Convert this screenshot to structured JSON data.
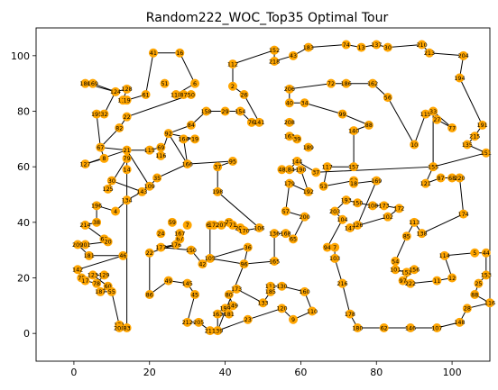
{
  "chart_data": {
    "type": "scatter",
    "title": "Random222_WOC_Top35 Optimal Tour",
    "xlim": [
      -10,
      110
    ],
    "ylim": [
      -10,
      110
    ],
    "x_ticks": [
      0,
      20,
      40,
      60,
      80,
      100
    ],
    "y_ticks": [
      0,
      20,
      40,
      60,
      80,
      100
    ],
    "grid": false,
    "marker_color": "#ffa500",
    "line_color": "#000000",
    "points": [
      {
        "id": "186",
        "x": 3,
        "y": 90
      },
      {
        "id": "169",
        "x": 5,
        "y": 90
      },
      {
        "id": "195",
        "x": 6,
        "y": 79
      },
      {
        "id": "32",
        "x": 8,
        "y": 79
      },
      {
        "id": "124",
        "x": 11,
        "y": 87
      },
      {
        "id": "128",
        "x": 14,
        "y": 88
      },
      {
        "id": "119",
        "x": 13,
        "y": 84
      },
      {
        "id": "19",
        "x": 14,
        "y": 84
      },
      {
        "id": "61",
        "x": 19,
        "y": 86
      },
      {
        "id": "41",
        "x": 21,
        "y": 101
      },
      {
        "id": "16",
        "x": 28,
        "y": 101
      },
      {
        "id": "51",
        "x": 24,
        "y": 90
      },
      {
        "id": "6",
        "x": 32,
        "y": 90
      },
      {
        "id": "118",
        "x": 27,
        "y": 86
      },
      {
        "id": "87",
        "x": 29,
        "y": 86
      },
      {
        "id": "50",
        "x": 31,
        "y": 86
      },
      {
        "id": "22",
        "x": 14,
        "y": 78
      },
      {
        "id": "82",
        "x": 12,
        "y": 74
      },
      {
        "id": "67",
        "x": 7,
        "y": 67
      },
      {
        "id": "8",
        "x": 8,
        "y": 63
      },
      {
        "id": "127",
        "x": 3,
        "y": 61
      },
      {
        "id": "21",
        "x": 14,
        "y": 66
      },
      {
        "id": "115",
        "x": 20,
        "y": 66
      },
      {
        "id": "69",
        "x": 23,
        "y": 67
      },
      {
        "id": "116",
        "x": 23,
        "y": 64
      },
      {
        "id": "92",
        "x": 25,
        "y": 72
      },
      {
        "id": "84",
        "x": 31,
        "y": 75
      },
      {
        "id": "158",
        "x": 35,
        "y": 80
      },
      {
        "id": "29",
        "x": 40,
        "y": 80
      },
      {
        "id": "154",
        "x": 44,
        "y": 80
      },
      {
        "id": "164",
        "x": 29,
        "y": 70
      },
      {
        "id": "19b",
        "x": 32,
        "y": 70
      },
      {
        "id": "112",
        "x": 42,
        "y": 97
      },
      {
        "id": "2",
        "x": 42,
        "y": 89
      },
      {
        "id": "26",
        "x": 45,
        "y": 86
      },
      {
        "id": "152",
        "x": 53,
        "y": 102
      },
      {
        "id": "218",
        "x": 53,
        "y": 98
      },
      {
        "id": "43",
        "x": 58,
        "y": 100
      },
      {
        "id": "183",
        "x": 62,
        "y": 103
      },
      {
        "id": "206",
        "x": 57,
        "y": 88
      },
      {
        "id": "40",
        "x": 57,
        "y": 83
      },
      {
        "id": "34",
        "x": 61,
        "y": 83
      },
      {
        "id": "76",
        "x": 47,
        "y": 76
      },
      {
        "id": "141",
        "x": 49,
        "y": 76
      },
      {
        "id": "74",
        "x": 72,
        "y": 104
      },
      {
        "id": "13",
        "x": 76,
        "y": 103
      },
      {
        "id": "137",
        "x": 80,
        "y": 104
      },
      {
        "id": "30",
        "x": 83,
        "y": 103
      },
      {
        "id": "210",
        "x": 92,
        "y": 104
      },
      {
        "id": "213",
        "x": 94,
        "y": 101
      },
      {
        "id": "204",
        "x": 103,
        "y": 100
      },
      {
        "id": "194",
        "x": 102,
        "y": 92
      },
      {
        "id": "72",
        "x": 68,
        "y": 90
      },
      {
        "id": "186b",
        "x": 72,
        "y": 90
      },
      {
        "id": "162",
        "x": 79,
        "y": 90
      },
      {
        "id": "56",
        "x": 83,
        "y": 85
      },
      {
        "id": "99",
        "x": 71,
        "y": 79
      },
      {
        "id": "88",
        "x": 78,
        "y": 75
      },
      {
        "id": "208",
        "x": 57,
        "y": 76
      },
      {
        "id": "163",
        "x": 57,
        "y": 71
      },
      {
        "id": "39",
        "x": 59,
        "y": 70
      },
      {
        "id": "189",
        "x": 62,
        "y": 67
      },
      {
        "id": "140",
        "x": 74,
        "y": 73
      },
      {
        "id": "10",
        "x": 90,
        "y": 68
      },
      {
        "id": "115b",
        "x": 93,
        "y": 79
      },
      {
        "id": "33",
        "x": 95,
        "y": 80
      },
      {
        "id": "27",
        "x": 96,
        "y": 77
      },
      {
        "id": "77",
        "x": 100,
        "y": 74
      },
      {
        "id": "191",
        "x": 108,
        "y": 75
      },
      {
        "id": "215",
        "x": 106,
        "y": 71
      },
      {
        "id": "135",
        "x": 104,
        "y": 68
      },
      {
        "id": "151",
        "x": 109,
        "y": 65
      },
      {
        "id": "121",
        "x": 93,
        "y": 54
      },
      {
        "id": "87b",
        "x": 97,
        "y": 56
      },
      {
        "id": "68",
        "x": 100,
        "y": 56
      },
      {
        "id": "220",
        "x": 102,
        "y": 56
      },
      {
        "id": "155",
        "x": 95,
        "y": 60
      },
      {
        "id": "174",
        "x": 103,
        "y": 43
      },
      {
        "id": "144",
        "x": 59,
        "y": 62
      },
      {
        "id": "184",
        "x": 57,
        "y": 59
      },
      {
        "id": "48",
        "x": 55,
        "y": 59
      },
      {
        "id": "190",
        "x": 60,
        "y": 59
      },
      {
        "id": "179",
        "x": 57,
        "y": 54
      },
      {
        "id": "192",
        "x": 62,
        "y": 51
      },
      {
        "id": "37",
        "x": 64,
        "y": 58
      },
      {
        "id": "117",
        "x": 67,
        "y": 60
      },
      {
        "id": "157",
        "x": 74,
        "y": 60
      },
      {
        "id": "53",
        "x": 66,
        "y": 53
      },
      {
        "id": "58",
        "x": 74,
        "y": 55
      },
      {
        "id": "18",
        "x": 74,
        "y": 54
      },
      {
        "id": "169b",
        "x": 80,
        "y": 55
      },
      {
        "id": "57",
        "x": 56,
        "y": 44
      },
      {
        "id": "200",
        "x": 61,
        "y": 42
      },
      {
        "id": "136",
        "x": 53,
        "y": 36
      },
      {
        "id": "168",
        "x": 56,
        "y": 36
      },
      {
        "id": "65",
        "x": 58,
        "y": 34
      },
      {
        "id": "193",
        "x": 72,
        "y": 48
      },
      {
        "id": "150",
        "x": 75,
        "y": 47
      },
      {
        "id": "108",
        "x": 79,
        "y": 46
      },
      {
        "id": "173",
        "x": 82,
        "y": 46
      },
      {
        "id": "172",
        "x": 86,
        "y": 45
      },
      {
        "id": "102",
        "x": 83,
        "y": 42
      },
      {
        "id": "203",
        "x": 69,
        "y": 44
      },
      {
        "id": "104",
        "x": 71,
        "y": 41
      },
      {
        "id": "126",
        "x": 75,
        "y": 39
      },
      {
        "id": "147",
        "x": 73,
        "y": 38
      },
      {
        "id": "94",
        "x": 67,
        "y": 31
      },
      {
        "id": "7",
        "x": 69,
        "y": 31
      },
      {
        "id": "103",
        "x": 69,
        "y": 27
      },
      {
        "id": "113",
        "x": 90,
        "y": 40
      },
      {
        "id": "85",
        "x": 88,
        "y": 35
      },
      {
        "id": "138",
        "x": 92,
        "y": 36
      },
      {
        "id": "54",
        "x": 85,
        "y": 26
      },
      {
        "id": "101",
        "x": 85,
        "y": 23
      },
      {
        "id": "152b",
        "x": 88,
        "y": 22
      },
      {
        "id": "156",
        "x": 90,
        "y": 23
      },
      {
        "id": "97",
        "x": 87,
        "y": 19
      },
      {
        "id": "222",
        "x": 89,
        "y": 18
      },
      {
        "id": "114",
        "x": 98,
        "y": 28
      },
      {
        "id": "11",
        "x": 96,
        "y": 19
      },
      {
        "id": "12",
        "x": 100,
        "y": 20
      },
      {
        "id": "5",
        "x": 106,
        "y": 29
      },
      {
        "id": "44",
        "x": 109,
        "y": 29
      },
      {
        "id": "153",
        "x": 109,
        "y": 21
      },
      {
        "id": "25",
        "x": 107,
        "y": 18
      },
      {
        "id": "88b",
        "x": 106,
        "y": 14
      },
      {
        "id": "116b",
        "x": 110,
        "y": 11
      },
      {
        "id": "28",
        "x": 104,
        "y": 9
      },
      {
        "id": "148",
        "x": 102,
        "y": 4
      },
      {
        "id": "107",
        "x": 96,
        "y": 2
      },
      {
        "id": "146",
        "x": 89,
        "y": 2
      },
      {
        "id": "62",
        "x": 82,
        "y": 2
      },
      {
        "id": "180",
        "x": 75,
        "y": 2
      },
      {
        "id": "178",
        "x": 73,
        "y": 7
      },
      {
        "id": "216",
        "x": 71,
        "y": 18
      },
      {
        "id": "110",
        "x": 63,
        "y": 8
      },
      {
        "id": "9",
        "x": 58,
        "y": 5
      },
      {
        "id": "120",
        "x": 55,
        "y": 9
      },
      {
        "id": "160",
        "x": 61,
        "y": 15
      },
      {
        "id": "111",
        "x": 52,
        "y": 17
      },
      {
        "id": "130",
        "x": 55,
        "y": 17
      },
      {
        "id": "185",
        "x": 52,
        "y": 15
      },
      {
        "id": "165",
        "x": 53,
        "y": 26
      },
      {
        "id": "96",
        "x": 45,
        "y": 25
      },
      {
        "id": "36",
        "x": 46,
        "y": 31
      },
      {
        "id": "133",
        "x": 50,
        "y": 11
      },
      {
        "id": "173b",
        "x": 43,
        "y": 16
      },
      {
        "id": "80",
        "x": 41,
        "y": 14
      },
      {
        "id": "149",
        "x": 42,
        "y": 10
      },
      {
        "id": "199",
        "x": 40,
        "y": 9
      },
      {
        "id": "163b",
        "x": 38,
        "y": 7
      },
      {
        "id": "181",
        "x": 41,
        "y": 7
      },
      {
        "id": "23",
        "x": 46,
        "y": 5
      },
      {
        "id": "139",
        "x": 38,
        "y": 1
      },
      {
        "id": "211",
        "x": 36,
        "y": 1
      },
      {
        "id": "205",
        "x": 33,
        "y": 4
      },
      {
        "id": "212",
        "x": 30,
        "y": 4
      },
      {
        "id": "45",
        "x": 32,
        "y": 14
      },
      {
        "id": "145",
        "x": 30,
        "y": 18
      },
      {
        "id": "49",
        "x": 25,
        "y": 19
      },
      {
        "id": "86",
        "x": 20,
        "y": 14
      },
      {
        "id": "105",
        "x": 36,
        "y": 27
      },
      {
        "id": "42",
        "x": 34,
        "y": 25
      },
      {
        "id": "150b",
        "x": 31,
        "y": 30
      },
      {
        "id": "177",
        "x": 23,
        "y": 31
      },
      {
        "id": "176",
        "x": 27,
        "y": 32
      },
      {
        "id": "22b",
        "x": 20,
        "y": 29
      },
      {
        "id": "67b",
        "x": 28,
        "y": 34
      },
      {
        "id": "167",
        "x": 28,
        "y": 36
      },
      {
        "id": "59",
        "x": 26,
        "y": 40
      },
      {
        "id": "7b",
        "x": 30,
        "y": 39
      },
      {
        "id": "24",
        "x": 23,
        "y": 36
      },
      {
        "id": "64",
        "x": 36,
        "y": 39
      },
      {
        "id": "172b",
        "x": 37,
        "y": 39
      },
      {
        "id": "73",
        "x": 41,
        "y": 40
      },
      {
        "id": "207",
        "x": 39,
        "y": 39
      },
      {
        "id": "71",
        "x": 42,
        "y": 39
      },
      {
        "id": "209",
        "x": 44,
        "y": 38
      },
      {
        "id": "170",
        "x": 45,
        "y": 37
      },
      {
        "id": "106",
        "x": 49,
        "y": 38
      },
      {
        "id": "198",
        "x": 38,
        "y": 51
      },
      {
        "id": "37b",
        "x": 38,
        "y": 60
      },
      {
        "id": "95",
        "x": 42,
        "y": 62
      },
      {
        "id": "166",
        "x": 30,
        "y": 61
      },
      {
        "id": "35",
        "x": 22,
        "y": 56
      },
      {
        "id": "109",
        "x": 20,
        "y": 53
      },
      {
        "id": "143",
        "x": 18,
        "y": 51
      },
      {
        "id": "30b",
        "x": 10,
        "y": 55
      },
      {
        "id": "125",
        "x": 9,
        "y": 52
      },
      {
        "id": "79",
        "x": 14,
        "y": 63
      },
      {
        "id": "14",
        "x": 14,
        "y": 59
      },
      {
        "id": "134",
        "x": 14,
        "y": 48
      },
      {
        "id": "4",
        "x": 11,
        "y": 44
      },
      {
        "id": "196",
        "x": 6,
        "y": 46
      },
      {
        "id": "38",
        "x": 6,
        "y": 40
      },
      {
        "id": "214",
        "x": 3,
        "y": 39
      },
      {
        "id": "63",
        "x": 8,
        "y": 34
      },
      {
        "id": "20",
        "x": 9,
        "y": 33
      },
      {
        "id": "201",
        "x": 3,
        "y": 32
      },
      {
        "id": "209b",
        "x": 1,
        "y": 32
      },
      {
        "id": "181b",
        "x": 4,
        "y": 28
      },
      {
        "id": "46",
        "x": 13,
        "y": 28
      },
      {
        "id": "142",
        "x": 1,
        "y": 23
      },
      {
        "id": "75",
        "x": 2,
        "y": 20
      },
      {
        "id": "17",
        "x": 3,
        "y": 19
      },
      {
        "id": "78",
        "x": 6,
        "y": 18
      },
      {
        "id": "129",
        "x": 8,
        "y": 21
      },
      {
        "id": "123",
        "x": 5,
        "y": 21
      },
      {
        "id": "60",
        "x": 9,
        "y": 17
      },
      {
        "id": "187",
        "x": 7,
        "y": 15
      },
      {
        "id": "55",
        "x": 10,
        "y": 15
      },
      {
        "id": "171",
        "x": 12,
        "y": 3
      },
      {
        "id": "208b",
        "x": 12,
        "y": 2
      },
      {
        "id": "83",
        "x": 14,
        "y": 2
      }
    ],
    "tour_order": [
      "186",
      "169",
      "124",
      "128",
      "119",
      "19",
      "61",
      "41",
      "16",
      "6",
      "118",
      "87",
      "50",
      "22",
      "82",
      "67",
      "8",
      "127",
      "21",
      "115",
      "69",
      "116",
      "92",
      "84",
      "158",
      "29",
      "154",
      "76",
      "141",
      "26",
      "2",
      "112",
      "152",
      "218",
      "43",
      "183",
      "74",
      "13",
      "137",
      "30",
      "210",
      "213",
      "204",
      "194",
      "191",
      "215",
      "135",
      "151",
      "155",
      "121",
      "87b",
      "68",
      "220",
      "174",
      "138",
      "113",
      "85",
      "54",
      "101",
      "152b",
      "156",
      "97",
      "222",
      "11",
      "12",
      "114",
      "5",
      "44",
      "153",
      "25",
      "88b",
      "116b",
      "28",
      "148",
      "107",
      "146",
      "62",
      "180",
      "178",
      "216",
      "103",
      "7",
      "94",
      "104",
      "203",
      "193",
      "150",
      "108",
      "173",
      "172",
      "102",
      "147",
      "126",
      "169b",
      "18",
      "58",
      "53",
      "117",
      "157",
      "140",
      "88",
      "99",
      "34",
      "40",
      "206",
      "72",
      "186b",
      "162",
      "56",
      "10",
      "115b",
      "33",
      "27",
      "77",
      "33",
      "155",
      "37",
      "144",
      "184",
      "48",
      "190",
      "192",
      "179",
      "57",
      "200",
      "65",
      "168",
      "136",
      "165",
      "96",
      "36",
      "105",
      "42",
      "150b",
      "177",
      "176",
      "22b",
      "86",
      "49",
      "145",
      "45",
      "212",
      "205",
      "211",
      "139",
      "163b",
      "181",
      "199",
      "149",
      "80",
      "173b",
      "133",
      "185",
      "111",
      "130",
      "160",
      "110",
      "9",
      "120",
      "23",
      "139",
      "96",
      "105",
      "64",
      "172b",
      "207",
      "73",
      "71",
      "209",
      "170",
      "106",
      "198",
      "37b",
      "95",
      "166",
      "164",
      "19b",
      "92",
      "166",
      "35",
      "109",
      "143",
      "30b",
      "125",
      "79",
      "14",
      "134",
      "4",
      "196",
      "38",
      "214",
      "63",
      "20",
      "201",
      "209b",
      "181b",
      "46",
      "142",
      "75",
      "17",
      "78",
      "129",
      "123",
      "60",
      "187",
      "55",
      "171",
      "208b",
      "83",
      "134",
      "143",
      "109",
      "21",
      "67",
      "195",
      "32",
      "124",
      "186"
    ]
  }
}
